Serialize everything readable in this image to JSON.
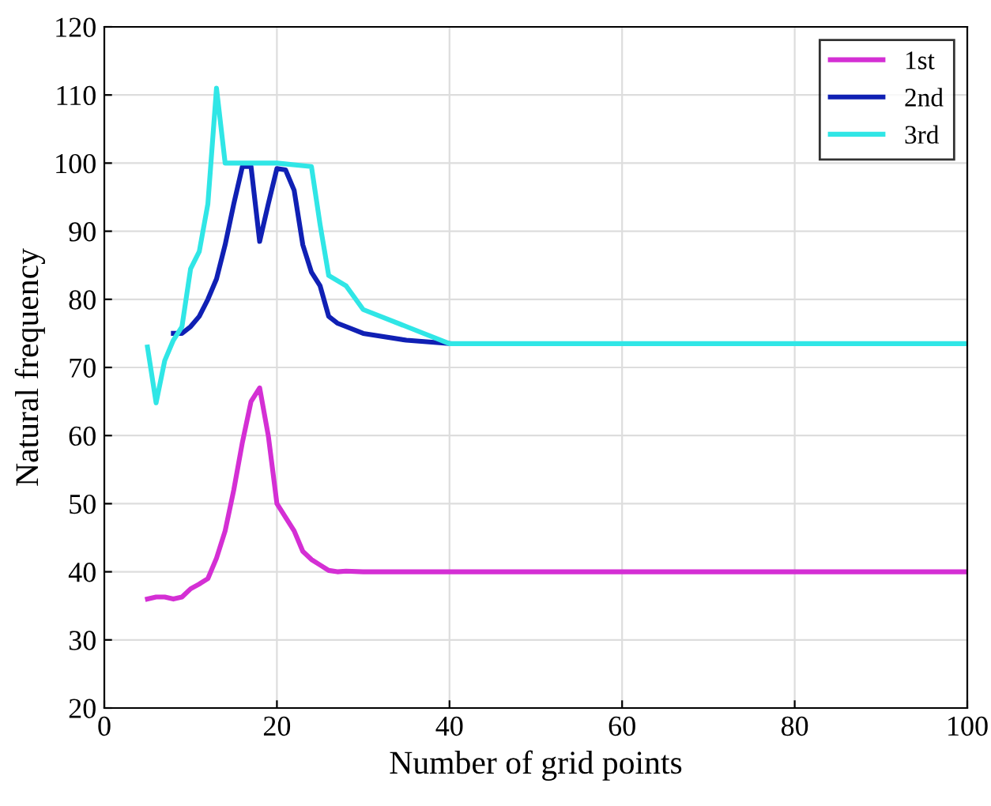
{
  "chart_data": {
    "type": "line",
    "xlabel": "Number of grid points",
    "ylabel": "Natural frequency",
    "xlim": [
      0,
      100
    ],
    "ylim": [
      20,
      120
    ],
    "xticks": [
      0,
      20,
      40,
      60,
      80,
      100
    ],
    "yticks": [
      20,
      30,
      40,
      50,
      60,
      70,
      80,
      90,
      100,
      110,
      120
    ],
    "grid": true,
    "legend": "top right",
    "series": [
      {
        "name": "1st",
        "color": "#d42fd4",
        "x": [
          5,
          6,
          7,
          8,
          9,
          10,
          11,
          12,
          13,
          14,
          15,
          16,
          17,
          18,
          19,
          20,
          21,
          22,
          23,
          24,
          25,
          26,
          27,
          28,
          30,
          40,
          100
        ],
        "values": [
          36,
          36.3,
          36.3,
          36,
          36.3,
          37.5,
          38.2,
          39,
          42,
          46,
          52,
          59,
          65,
          67,
          60,
          50,
          48,
          46,
          43,
          41.8,
          41,
          40.2,
          40,
          40.1,
          40,
          40,
          40
        ]
      },
      {
        "name": "2nd",
        "color": "#1020b4",
        "x": [
          8,
          9,
          10,
          11,
          12,
          13,
          14,
          15,
          16,
          17,
          18,
          19,
          20,
          21,
          22,
          23,
          24,
          25,
          26,
          27,
          28,
          30,
          35,
          40
        ],
        "values": [
          75,
          75,
          76,
          77.5,
          80,
          83,
          88,
          94,
          99.5,
          99.5,
          88.5,
          94,
          99.2,
          99,
          96,
          88,
          84,
          82,
          77.5,
          76.5,
          76,
          75,
          74,
          73.5
        ]
      },
      {
        "name": "3rd",
        "color": "#30e6e6",
        "x": [
          5,
          6,
          7,
          8,
          9,
          10,
          11,
          12,
          13,
          14,
          20,
          24,
          25,
          26,
          28,
          30,
          35,
          40,
          100
        ],
        "values": [
          73,
          64.8,
          71,
          74,
          76,
          84.5,
          87,
          94,
          111,
          100,
          100,
          99.5,
          91,
          83.5,
          82,
          78.5,
          76,
          73.5,
          73.5
        ]
      }
    ]
  }
}
